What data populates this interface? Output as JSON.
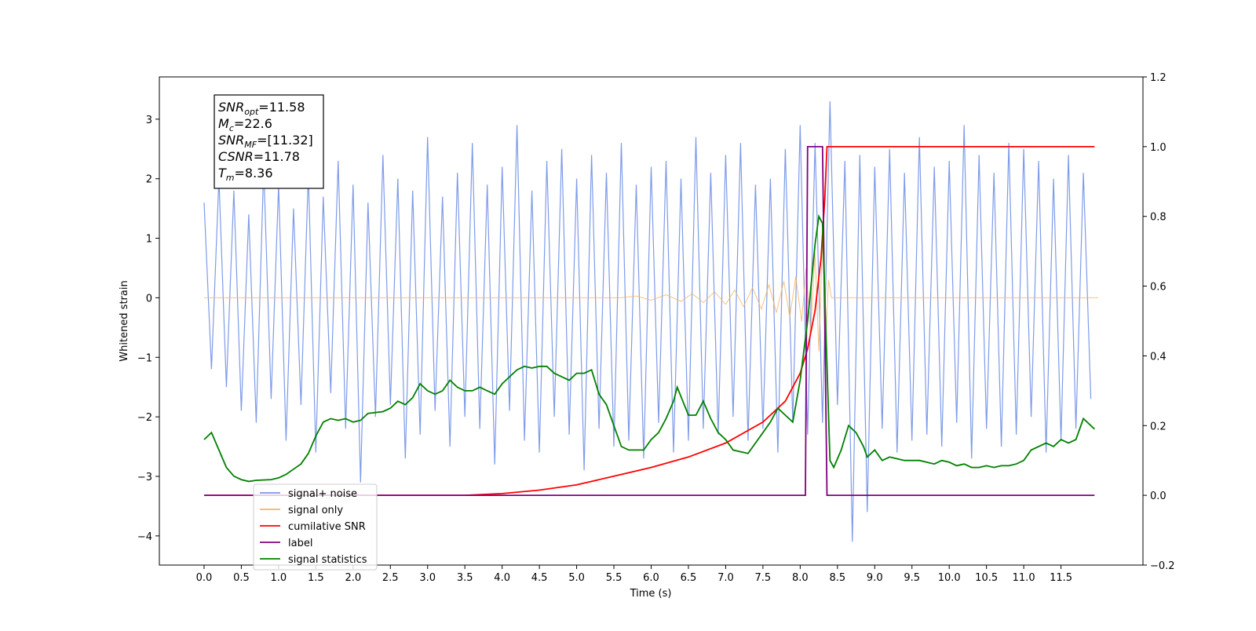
{
  "chart_data": {
    "type": "line",
    "xlabel": "Time (s)",
    "ylabel": "Whitened strain",
    "xlim": [
      -0.6,
      12.6
    ],
    "ylim": [
      -4.49,
      3.71
    ],
    "y2lim": [
      -0.2,
      1.2
    ],
    "xticks": [
      {
        "value": 0,
        "label": "0.0"
      },
      0.5,
      {
        "value": 1,
        "label": "1.0"
      },
      1.5,
      {
        "value": 2,
        "label": "2.0"
      },
      2.5,
      {
        "value": 3,
        "label": "3.0"
      },
      3.5,
      {
        "value": 4,
        "label": "4.0"
      },
      4.5,
      {
        "value": 5,
        "label": "5.0"
      },
      5.5,
      {
        "value": 6,
        "label": "6.0"
      },
      6.5,
      {
        "value": 7,
        "label": "7.0"
      },
      7.5,
      {
        "value": 8,
        "label": "8.0"
      },
      8.5,
      {
        "value": 9,
        "label": "9.0"
      },
      9.5,
      {
        "value": 10,
        "label": "10.0"
      },
      10.5,
      {
        "value": 11,
        "label": "11.0"
      },
      11.5
    ],
    "yticks": [
      {
        "value": -4,
        "label": "−4"
      },
      {
        "value": -3,
        "label": "−3"
      },
      {
        "value": -2,
        "label": "−2"
      },
      {
        "value": -1,
        "label": "−1"
      },
      0,
      1,
      2,
      3
    ],
    "y2ticks": [
      {
        "value": -0.2,
        "label": "−0.2"
      },
      {
        "value": 0,
        "label": "0.0"
      },
      0.2,
      0.4,
      0.6,
      0.8,
      {
        "value": 1,
        "label": "1.0"
      },
      1.2
    ],
    "annotation": [
      {
        "symbol": "SNR",
        "subscript": "opt",
        "text": "=11.58"
      },
      {
        "symbol": "M",
        "subscript": "c",
        "text": "=22.6"
      },
      {
        "symbol": "SNR",
        "subscript": "MF",
        "text": "=[11.32]"
      },
      {
        "symbol": "CSNR",
        "subscript": "",
        "text": "=11.78"
      },
      {
        "symbol": "T",
        "subscript": "m",
        "text": "=8.36"
      }
    ],
    "series": [
      {
        "name": "signal+ noise",
        "color": "#7896e8",
        "axis": "y",
        "x": [
          0,
          0.1,
          0.2,
          0.3,
          0.4,
          0.5,
          0.6,
          0.7,
          0.8,
          0.9,
          1,
          1.1,
          1.2,
          1.3,
          1.4,
          1.5,
          1.6,
          1.7,
          1.8,
          1.9,
          2,
          2.1,
          2.2,
          2.3,
          2.4,
          2.5,
          2.6,
          2.7,
          2.8,
          2.9,
          3,
          3.1,
          3.2,
          3.3,
          3.4,
          3.5,
          3.6,
          3.7,
          3.8,
          3.9,
          4,
          4.1,
          4.2,
          4.3,
          4.4,
          4.5,
          4.6,
          4.7,
          4.8,
          4.9,
          5,
          5.1,
          5.2,
          5.3,
          5.4,
          5.5,
          5.6,
          5.7,
          5.8,
          5.9,
          6,
          6.1,
          6.2,
          6.3,
          6.4,
          6.5,
          6.6,
          6.7,
          6.8,
          6.9,
          7,
          7.1,
          7.2,
          7.3,
          7.4,
          7.5,
          7.6,
          7.7,
          7.8,
          7.9,
          8,
          8.1,
          8.2,
          8.3,
          8.4,
          8.5,
          8.6,
          8.7,
          8.8,
          8.9,
          9,
          9.1,
          9.2,
          9.3,
          9.4,
          9.5,
          9.6,
          9.7,
          9.8,
          9.9,
          10,
          10.1,
          10.2,
          10.3,
          10.4,
          10.5,
          10.6,
          10.7,
          10.8,
          10.9,
          11,
          11.1,
          11.2,
          11.3,
          11.4,
          11.5,
          11.6,
          11.7,
          11.8,
          11.9
        ],
        "values": [
          1.6,
          -1.2,
          2.0,
          -1.5,
          1.8,
          -1.9,
          1.4,
          -2.1,
          2.2,
          -1.7,
          1.9,
          -2.4,
          1.5,
          -1.8,
          2.1,
          -2.6,
          1.7,
          -1.6,
          2.3,
          -2.2,
          1.9,
          -3.1,
          1.6,
          -2.0,
          2.4,
          -1.8,
          2.0,
          -2.7,
          1.8,
          -2.3,
          2.7,
          -1.9,
          1.7,
          -2.5,
          2.1,
          -2.0,
          2.6,
          -2.2,
          1.9,
          -2.8,
          2.2,
          -1.9,
          2.9,
          -2.4,
          1.8,
          -2.6,
          2.3,
          -2.0,
          2.5,
          -2.3,
          2.0,
          -2.9,
          2.4,
          -2.2,
          2.1,
          -2.5,
          2.6,
          -2.4,
          1.9,
          -2.7,
          2.2,
          -2.1,
          2.3,
          -2.6,
          2.0,
          -2.4,
          2.7,
          -2.2,
          2.1,
          -2.3,
          2.4,
          -2.0,
          2.6,
          -2.4,
          1.9,
          -2.2,
          2.0,
          -2.6,
          2.5,
          -2.1,
          2.9,
          -2.3,
          2.6,
          -2.1,
          3.3,
          -1.8,
          2.3,
          -4.1,
          2.4,
          -3.6,
          2.2,
          -2.2,
          2.5,
          -2.6,
          2.1,
          -2.4,
          2.7,
          -2.3,
          2.2,
          -2.5,
          2.3,
          -2.1,
          2.9,
          -2.7,
          2.4,
          -2.2,
          2.1,
          -2.5,
          2.6,
          -2.3,
          2.5,
          -2.0,
          2.3,
          -2.6,
          2.0,
          -2.4,
          2.4,
          -2.2,
          2.1,
          -1.7
        ]
      },
      {
        "name": "signal only",
        "color": "#f5b461",
        "axis": "y",
        "x": [
          0,
          5.6,
          5.8,
          6.0,
          6.2,
          6.4,
          6.55,
          6.7,
          6.85,
          7.0,
          7.12,
          7.24,
          7.36,
          7.48,
          7.58,
          7.68,
          7.78,
          7.86,
          7.94,
          8.02,
          8.08,
          8.14,
          8.2,
          8.25,
          8.3,
          8.34,
          8.38,
          8.42,
          12.0
        ],
        "values": [
          0,
          0,
          0.03,
          -0.04,
          0.05,
          -0.06,
          0.07,
          -0.08,
          0.1,
          -0.11,
          0.13,
          -0.15,
          0.17,
          -0.19,
          0.22,
          -0.25,
          0.28,
          -0.32,
          0.36,
          -0.4,
          0.5,
          -0.6,
          0.75,
          -0.9,
          1.0,
          -0.8,
          0.3,
          0,
          0
        ]
      },
      {
        "name": "cumilative SNR",
        "color": "#ff0000",
        "axis": "y2",
        "x": [
          0,
          3.5,
          4.0,
          4.5,
          5.0,
          5.5,
          6.0,
          6.5,
          7.0,
          7.5,
          7.8,
          8.0,
          8.1,
          8.2,
          8.28,
          8.33,
          8.36,
          11.95
        ],
        "values": [
          0,
          0,
          0.005,
          0.015,
          0.03,
          0.055,
          0.08,
          0.11,
          0.15,
          0.21,
          0.27,
          0.35,
          0.42,
          0.53,
          0.68,
          0.85,
          1.0,
          1.0
        ]
      },
      {
        "name": "label",
        "color": "#800080",
        "axis": "y2",
        "x": [
          0,
          8.07,
          8.1,
          8.3,
          8.36,
          11.95
        ],
        "values": [
          0,
          0,
          1,
          1,
          0,
          0
        ]
      },
      {
        "name": "signal statistics",
        "color": "#008000",
        "axis": "y2",
        "x": [
          0,
          0.1,
          0.2,
          0.3,
          0.4,
          0.5,
          0.6,
          0.7,
          0.9,
          1.0,
          1.1,
          1.2,
          1.3,
          1.4,
          1.5,
          1.6,
          1.7,
          1.8,
          1.9,
          2.0,
          2.1,
          2.2,
          2.4,
          2.5,
          2.6,
          2.7,
          2.8,
          2.9,
          3.0,
          3.1,
          3.2,
          3.3,
          3.4,
          3.5,
          3.6,
          3.7,
          3.8,
          3.9,
          4.0,
          4.1,
          4.2,
          4.3,
          4.4,
          4.5,
          4.6,
          4.7,
          4.8,
          4.9,
          5.0,
          5.1,
          5.2,
          5.3,
          5.4,
          5.5,
          5.6,
          5.7,
          5.8,
          5.9,
          6.0,
          6.1,
          6.2,
          6.3,
          6.35,
          6.5,
          6.6,
          6.7,
          6.8,
          6.9,
          7.0,
          7.1,
          7.2,
          7.3,
          7.4,
          7.5,
          7.6,
          7.7,
          7.8,
          7.9,
          8.0,
          8.1,
          8.2,
          8.25,
          8.3,
          8.4,
          8.45,
          8.55,
          8.65,
          8.75,
          8.85,
          8.9,
          9.0,
          9.1,
          9.2,
          9.4,
          9.6,
          9.8,
          9.9,
          10.0,
          10.1,
          10.2,
          10.3,
          10.4,
          10.5,
          10.6,
          10.7,
          10.8,
          10.9,
          11.0,
          11.1,
          11.2,
          11.3,
          11.4,
          11.5,
          11.6,
          11.7,
          11.8,
          11.95
        ],
        "values": [
          0.16,
          0.18,
          0.13,
          0.08,
          0.055,
          0.045,
          0.04,
          0.043,
          0.045,
          0.05,
          0.06,
          0.075,
          0.09,
          0.12,
          0.17,
          0.21,
          0.22,
          0.215,
          0.22,
          0.21,
          0.215,
          0.235,
          0.24,
          0.25,
          0.27,
          0.26,
          0.28,
          0.32,
          0.3,
          0.29,
          0.3,
          0.33,
          0.31,
          0.3,
          0.3,
          0.31,
          0.3,
          0.29,
          0.32,
          0.34,
          0.36,
          0.37,
          0.365,
          0.37,
          0.37,
          0.35,
          0.34,
          0.33,
          0.35,
          0.35,
          0.36,
          0.29,
          0.26,
          0.2,
          0.14,
          0.13,
          0.13,
          0.13,
          0.16,
          0.18,
          0.22,
          0.27,
          0.31,
          0.23,
          0.23,
          0.27,
          0.22,
          0.18,
          0.16,
          0.13,
          0.125,
          0.12,
          0.15,
          0.18,
          0.21,
          0.25,
          0.23,
          0.21,
          0.33,
          0.5,
          0.72,
          0.8,
          0.78,
          0.1,
          0.08,
          0.13,
          0.2,
          0.18,
          0.14,
          0.11,
          0.13,
          0.1,
          0.11,
          0.1,
          0.1,
          0.09,
          0.1,
          0.095,
          0.085,
          0.09,
          0.08,
          0.08,
          0.085,
          0.08,
          0.085,
          0.085,
          0.09,
          0.1,
          0.13,
          0.14,
          0.15,
          0.14,
          0.16,
          0.15,
          0.16,
          0.22,
          0.19
        ]
      }
    ]
  }
}
